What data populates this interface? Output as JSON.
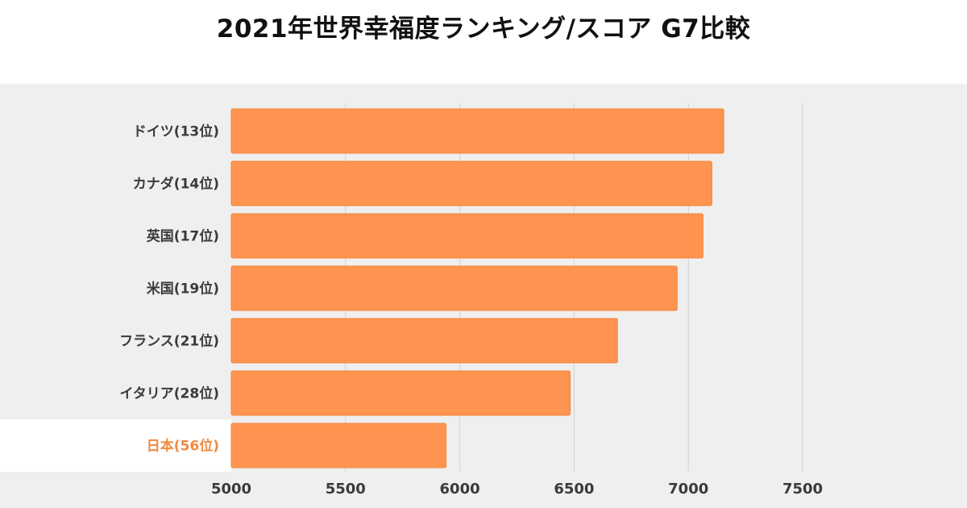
{
  "title": "2021年世界幸福度ランキング/スコア G7比較",
  "colors": {
    "bar": "#ff9450",
    "bar_edge": "#f3843c",
    "highlight_label": "#f08a3e",
    "label": "#3a3a3a",
    "grid": "#d2d2d2",
    "panel": "#efefef",
    "highlight_band": "#ffffff"
  },
  "chart_data": {
    "type": "bar",
    "orientation": "horizontal",
    "categories": [
      "ドイツ(13位)",
      "カナダ(14位)",
      "英国(17位)",
      "米国(19位)",
      "フランス(21位)",
      "イタリア(28位)",
      "日本(56位)"
    ],
    "values": [
      7155,
      7103,
      7064,
      6951,
      6690,
      6483,
      5940
    ],
    "highlight_index": 6,
    "xlim": [
      5000,
      7500
    ],
    "xticks": [
      5000,
      5500,
      6000,
      6500,
      7000,
      7500
    ],
    "tick_labels": [
      "5000",
      "5500",
      "6000",
      "6500",
      "7000",
      "7500"
    ],
    "grid": true,
    "xlabel": "",
    "ylabel": ""
  }
}
